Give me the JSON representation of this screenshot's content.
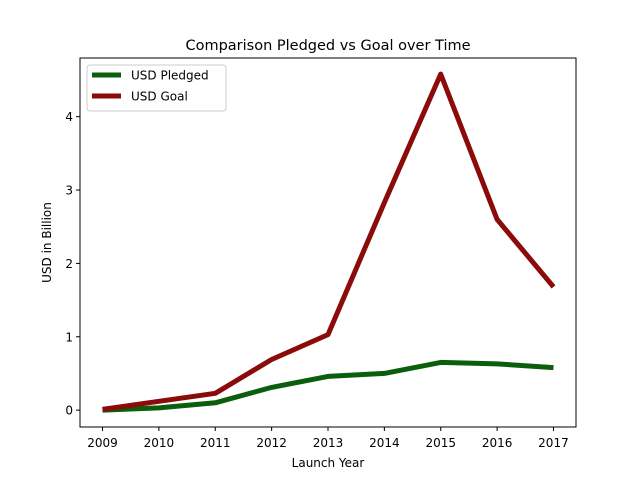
{
  "chart_data": {
    "type": "line",
    "title": "Comparison Pledged vs Goal over Time",
    "xlabel": "Launch Year",
    "ylabel": "USD in Billion",
    "x": [
      2009,
      2010,
      2011,
      2012,
      2013,
      2014,
      2015,
      2016,
      2017
    ],
    "xlim": [
      2008.6,
      2017.4
    ],
    "ylim": [
      -0.23,
      4.8
    ],
    "yticks": [
      0,
      1,
      2,
      3,
      4
    ],
    "grid": false,
    "legend_position": "top-left",
    "series": [
      {
        "name": "USD Pledged",
        "color": "#0b5e0b",
        "values": [
          0.0,
          0.03,
          0.1,
          0.31,
          0.46,
          0.5,
          0.65,
          0.63,
          0.58
        ]
      },
      {
        "name": "USD Goal",
        "color": "#8b0a0a",
        "values": [
          0.01,
          0.12,
          0.23,
          0.69,
          1.03,
          2.83,
          4.58,
          2.6,
          1.68
        ]
      }
    ]
  }
}
